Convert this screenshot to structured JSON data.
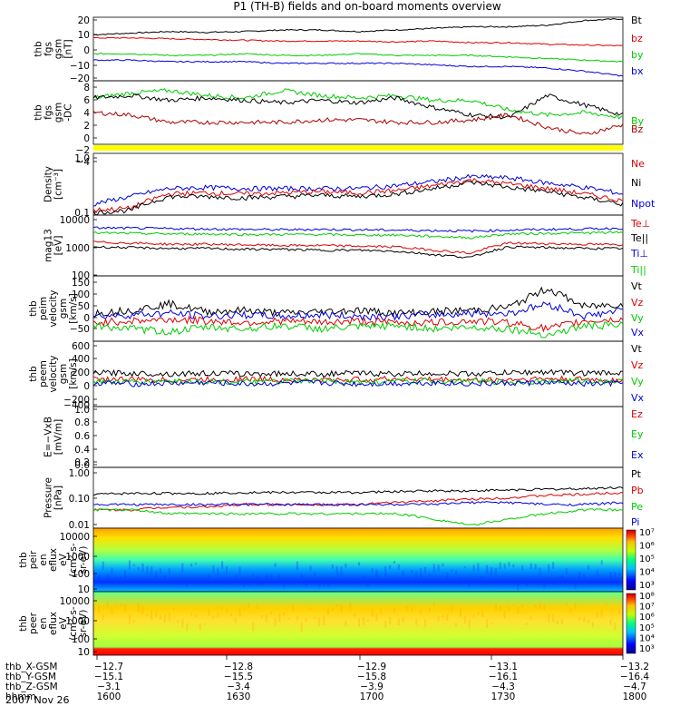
{
  "title": "P1 (TH-B) fields and on-board moments overview",
  "date_label": "2007 Nov 26",
  "chart_data": [
    {
      "type": "line",
      "ylabel": [
        "thb",
        "fgs",
        "gsm",
        "[nT]"
      ],
      "yticks": [
        "20",
        "10",
        "0",
        "−10",
        "−20"
      ],
      "ylim": [
        -20,
        20
      ],
      "legend": [
        {
          "name": "Bt",
          "color": "#000000"
        },
        {
          "name": "bz",
          "color": "#dd0000"
        },
        {
          "name": "by",
          "color": "#00cc00"
        },
        {
          "name": "bx",
          "color": "#0000dd"
        }
      ],
      "series": [
        {
          "name": "Bt",
          "color": "#000000",
          "values": [
            9,
            10,
            11,
            10.5,
            11,
            12,
            12,
            11,
            12,
            13,
            14,
            14,
            15,
            18,
            19
          ]
        },
        {
          "name": "bz",
          "color": "#dd0000",
          "values": [
            7,
            7,
            6.5,
            6,
            5.5,
            5,
            5,
            5,
            4.5,
            5,
            4,
            4,
            3,
            2.5,
            2
          ]
        },
        {
          "name": "by",
          "color": "#00cc00",
          "values": [
            -3,
            -3,
            -4,
            -4,
            -3,
            -4,
            -4,
            -3,
            -4,
            -4,
            -4,
            -5,
            -6,
            -7,
            -8
          ]
        },
        {
          "name": "bx",
          "color": "#0000dd",
          "values": [
            -7,
            -7,
            -8,
            -8,
            -8,
            -9,
            -9,
            -9,
            -9,
            -10,
            -11,
            -11,
            -12,
            -14,
            -17
          ]
        }
      ]
    },
    {
      "type": "line",
      "ylabel": [
        "thb",
        "fgs",
        "gsm",
        "-DC"
      ],
      "yticks": [
        "8",
        "6",
        "4",
        "2",
        "0",
        "−2",
        "−4"
      ],
      "ylim": [
        -5,
        8
      ],
      "legend": [
        {
          "name": "By",
          "color": "#00cc00"
        },
        {
          "name": "Bz",
          "color": "#aa0000"
        }
      ],
      "series": [
        {
          "name": "By",
          "color": "#00cc00",
          "values": [
            4.5,
            5.5,
            6,
            5,
            4.5,
            6,
            5,
            4.5,
            5,
            4,
            4,
            2,
            1,
            1.5,
            0.5
          ]
        },
        {
          "name": "Bx",
          "color": "#000000",
          "values": [
            4.5,
            5,
            4,
            4.5,
            4,
            3.5,
            4,
            3.5,
            4.5,
            2.5,
            1,
            0.5,
            5,
            3,
            1
          ]
        },
        {
          "name": "Bz",
          "color": "#aa0000",
          "values": [
            1.5,
            1,
            -0.5,
            -0.5,
            -0.5,
            -0.5,
            0,
            0,
            -0.5,
            -0.5,
            0,
            1,
            -1.5,
            -3,
            -1
          ]
        }
      ]
    },
    {
      "type": "line",
      "scale": "log",
      "ylabel": [
        "Density",
        "[cm⁻³]"
      ],
      "yticks": [
        "1.0",
        "0.1"
      ],
      "ylim": [
        0.1,
        1.0
      ],
      "legend": [
        {
          "name": "Ne",
          "color": "#dd0000"
        },
        {
          "name": "Ni",
          "color": "#000000"
        },
        {
          "name": "Npot",
          "color": "#0000dd"
        }
      ],
      "series": [
        {
          "name": "Npot",
          "color": "#0000dd",
          "values": [
            0.15,
            0.2,
            0.27,
            0.28,
            0.27,
            0.27,
            0.27,
            0.27,
            0.3,
            0.35,
            0.42,
            0.4,
            0.33,
            0.28,
            0.22
          ]
        },
        {
          "name": "Ne",
          "color": "#dd0000",
          "values": [
            0.12,
            0.13,
            0.22,
            0.23,
            0.22,
            0.23,
            0.24,
            0.23,
            0.25,
            0.3,
            0.37,
            0.32,
            0.27,
            0.22,
            0.17
          ]
        },
        {
          "name": "Ni",
          "color": "#000000",
          "values": [
            0.11,
            0.12,
            0.2,
            0.2,
            0.19,
            0.2,
            0.21,
            0.2,
            0.22,
            0.27,
            0.34,
            0.28,
            0.24,
            0.19,
            0.15
          ]
        }
      ]
    },
    {
      "type": "line",
      "scale": "log",
      "ylabel": [
        "mag13",
        "[eV]"
      ],
      "yticks": [
        "10000",
        "1000",
        "100"
      ],
      "ylim": [
        100,
        10000
      ],
      "legend": [
        {
          "name": "Te⊥",
          "color": "#dd0000"
        },
        {
          "name": "Te||",
          "color": "#000000"
        },
        {
          "name": "Ti⊥",
          "color": "#0000dd"
        },
        {
          "name": "Ti||",
          "color": "#00cc00"
        }
      ],
      "series": [
        {
          "name": "Ti⊥",
          "color": "#0000dd",
          "values": [
            3800,
            3700,
            3600,
            3500,
            3400,
            3300,
            3400,
            3300,
            3200,
            3100,
            3000,
            3200,
            3400,
            3500,
            3700
          ]
        },
        {
          "name": "Ti||",
          "color": "#00cc00",
          "values": [
            2600,
            2500,
            2400,
            2400,
            2300,
            2300,
            2300,
            2200,
            2200,
            2000,
            1800,
            2400,
            2500,
            2600,
            2700
          ]
        },
        {
          "name": "Te||",
          "color": "#000000",
          "values": [
            900,
            850,
            800,
            800,
            750,
            750,
            700,
            700,
            650,
            500,
            400,
            900,
            850,
            800,
            800
          ]
        },
        {
          "name": "Te⊥",
          "color": "#dd0000",
          "values": [
            1300,
            1200,
            1100,
            1100,
            1050,
            1000,
            1000,
            950,
            900,
            700,
            550,
            1200,
            1150,
            1100,
            1050
          ]
        }
      ]
    },
    {
      "type": "line",
      "ylabel": [
        "thb",
        "peim",
        "velocity",
        "gsm",
        "[km/s]"
      ],
      "yticks": [
        "150",
        "100",
        "50",
        "0",
        "−50"
      ],
      "ylim": [
        -60,
        150
      ],
      "legend": [
        {
          "name": "Vt",
          "color": "#000000"
        },
        {
          "name": "Vz",
          "color": "#dd0000"
        },
        {
          "name": "Vy",
          "color": "#00cc00"
        },
        {
          "name": "Vx",
          "color": "#0000dd"
        }
      ],
      "series": [
        {
          "name": "Vt",
          "color": "#000000",
          "values": [
            30,
            40,
            60,
            35,
            40,
            30,
            35,
            40,
            30,
            35,
            40,
            50,
            110,
            50,
            60
          ]
        },
        {
          "name": "Vx",
          "color": "#0000dd",
          "values": [
            20,
            25,
            30,
            20,
            25,
            20,
            25,
            20,
            20,
            25,
            30,
            30,
            60,
            20,
            40
          ]
        },
        {
          "name": "Vz",
          "color": "#dd0000",
          "values": [
            0,
            5,
            10,
            5,
            0,
            5,
            0,
            5,
            0,
            0,
            5,
            0,
            -20,
            5,
            10
          ]
        },
        {
          "name": "Vy",
          "color": "#00cc00",
          "values": [
            -10,
            -20,
            -30,
            -15,
            -20,
            -10,
            -20,
            -15,
            -10,
            -20,
            -15,
            -20,
            -40,
            -10,
            -10
          ]
        }
      ]
    },
    {
      "type": "line",
      "ylabel": [
        "thb",
        "peem",
        "velocity",
        "gsm",
        "[km/s]"
      ],
      "yticks": [
        "600",
        "400",
        "200",
        "0",
        "−200",
        "−400"
      ],
      "ylim": [
        -420,
        620
      ],
      "legend": [
        {
          "name": "Vt",
          "color": "#000000"
        },
        {
          "name": "Vz",
          "color": "#dd0000"
        },
        {
          "name": "Vy",
          "color": "#00cc00"
        },
        {
          "name": "Vx",
          "color": "#0000dd"
        }
      ],
      "series": [
        {
          "name": "Vt",
          "color": "#000000",
          "values": [
            120,
            110,
            100,
            110,
            100,
            105,
            100,
            110,
            100,
            110,
            100,
            120,
            130,
            110,
            120
          ]
        },
        {
          "name": "Vz",
          "color": "#dd0000",
          "values": [
            20,
            10,
            0,
            10,
            20,
            10,
            0,
            10,
            20,
            10,
            0,
            10,
            20,
            10,
            0
          ]
        },
        {
          "name": "Vy",
          "color": "#00cc00",
          "values": [
            -20,
            -30,
            -10,
            -20,
            -30,
            -20,
            -10,
            -30,
            -20,
            -10,
            -20,
            -30,
            -20,
            -10,
            -20
          ]
        },
        {
          "name": "Vx",
          "color": "#0000dd",
          "values": [
            -40,
            -60,
            -50,
            -40,
            -60,
            -50,
            -40,
            -60,
            -50,
            -40,
            -60,
            -50,
            -40,
            -60,
            -50
          ]
        }
      ]
    },
    {
      "type": "line",
      "ylabel": [
        "E=−VxB",
        "[mV/m]"
      ],
      "yticks": [
        "1.0",
        "0.8",
        "0.6",
        "0.4",
        "0.2",
        "0.0"
      ],
      "ylim": [
        0,
        1
      ],
      "legend": [
        {
          "name": "Ez",
          "color": "#dd0000"
        },
        {
          "name": "Ey",
          "color": "#00cc00"
        },
        {
          "name": "Ex",
          "color": "#0000dd"
        }
      ],
      "series": []
    },
    {
      "type": "line",
      "scale": "log",
      "ylabel": [
        "Pressure",
        "[nPa]"
      ],
      "yticks": [
        "1.00",
        "0.10",
        "0.01"
      ],
      "ylim": [
        0.01,
        1.0
      ],
      "legend": [
        {
          "name": "Pt",
          "color": "#000000"
        },
        {
          "name": "Pb",
          "color": "#dd0000"
        },
        {
          "name": "Pe",
          "color": "#00cc00"
        },
        {
          "name": "Pi",
          "color": "#0000dd"
        }
      ],
      "series": [
        {
          "name": "Pt",
          "color": "#000000",
          "values": [
            0.13,
            0.14,
            0.14,
            0.14,
            0.15,
            0.15,
            0.15,
            0.15,
            0.16,
            0.17,
            0.17,
            0.18,
            0.19,
            0.2,
            0.22
          ]
        },
        {
          "name": "Pb",
          "color": "#dd0000",
          "values": [
            0.04,
            0.04,
            0.05,
            0.05,
            0.06,
            0.06,
            0.06,
            0.06,
            0.07,
            0.08,
            0.09,
            0.1,
            0.12,
            0.13,
            0.15
          ]
        },
        {
          "name": "Pi",
          "color": "#0000dd",
          "values": [
            0.06,
            0.06,
            0.06,
            0.06,
            0.06,
            0.06,
            0.06,
            0.06,
            0.06,
            0.06,
            0.07,
            0.07,
            0.06,
            0.06,
            0.07
          ]
        },
        {
          "name": "Pe",
          "color": "#00cc00",
          "values": [
            0.04,
            0.04,
            0.03,
            0.03,
            0.03,
            0.03,
            0.03,
            0.03,
            0.03,
            0.02,
            0.012,
            0.02,
            0.03,
            0.04,
            0.04
          ]
        }
      ]
    },
    {
      "type": "heatmap",
      "ylabel": [
        "thb",
        "peir",
        "en",
        "eflux",
        "eV",
        "(cm²-s-",
        "sr-eV)"
      ],
      "yticks": [
        "10000",
        "1000",
        "100",
        "10"
      ],
      "colorbar_ticks": [
        "10⁷",
        "10⁶",
        "10⁵",
        "10⁴",
        "10³"
      ]
    },
    {
      "type": "heatmap",
      "ylabel": [
        "thb",
        "peer",
        "en",
        "eflux",
        "eV",
        "(cm²-s-",
        "sr-eV)"
      ],
      "yticks": [
        "10000",
        "1000",
        "100",
        "10"
      ],
      "colorbar_ticks": [
        "10⁸",
        "10⁷",
        "10⁶",
        "10⁵",
        "10⁴",
        "10³"
      ]
    }
  ],
  "x_axis": {
    "rows": [
      {
        "label": "thb_X-GSM",
        "values": [
          "−12.7",
          "−12.8",
          "−12.9",
          "−13.1",
          "−13.2"
        ]
      },
      {
        "label": "thb_Y-GSM",
        "values": [
          "−15.1",
          "−15.5",
          "−15.8",
          "−16.1",
          "−16.4"
        ]
      },
      {
        "label": "thb_Z-GSM",
        "values": [
          "−3.1",
          "−3.4",
          "−3.9",
          "−4.3",
          "−4.7"
        ]
      },
      {
        "label": "hhmm",
        "values": [
          "1600",
          "1630",
          "1700",
          "1730",
          "1800"
        ]
      }
    ]
  }
}
